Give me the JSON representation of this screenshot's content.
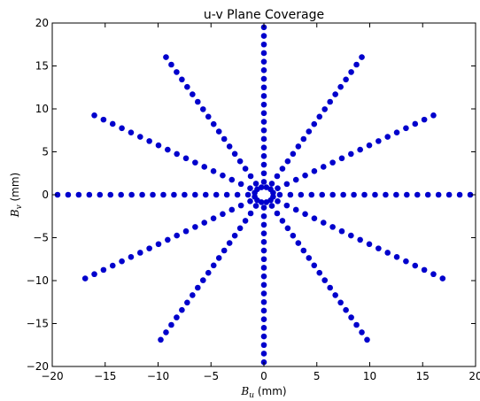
{
  "chart_data": {
    "type": "scatter",
    "title": "u-v Plane Coverage",
    "xlabel_symbol": "B",
    "xlabel_sub": "u",
    "xlabel_unit": " (mm)",
    "ylabel_symbol": "B",
    "ylabel_sub": "v",
    "ylabel_unit": " (mm)",
    "xlim": [
      -20,
      20
    ],
    "ylim": [
      -20,
      20
    ],
    "xticks": [
      -20,
      -15,
      -10,
      -5,
      0,
      5,
      10,
      15,
      20
    ],
    "yticks": [
      -20,
      -15,
      -10,
      -5,
      0,
      5,
      10,
      15,
      20
    ],
    "grid": false,
    "marker_color": "#0000cc",
    "series": [
      {
        "description": "Radial spokes at 30 degree intervals, points spaced ~1 mm from ~0.5 mm to the outer radius",
        "spoke_angles_deg": [
          0,
          30,
          60,
          90,
          120,
          150,
          180,
          210,
          240,
          270,
          300,
          330
        ],
        "spoke_max_radius": [
          19.5,
          19,
          19,
          19.5,
          19,
          19,
          20,
          20,
          20,
          20,
          20,
          20
        ],
        "point_spacing": 1.0,
        "inner_ring_radius": 0.9,
        "inner_ring_points": 12
      }
    ]
  }
}
